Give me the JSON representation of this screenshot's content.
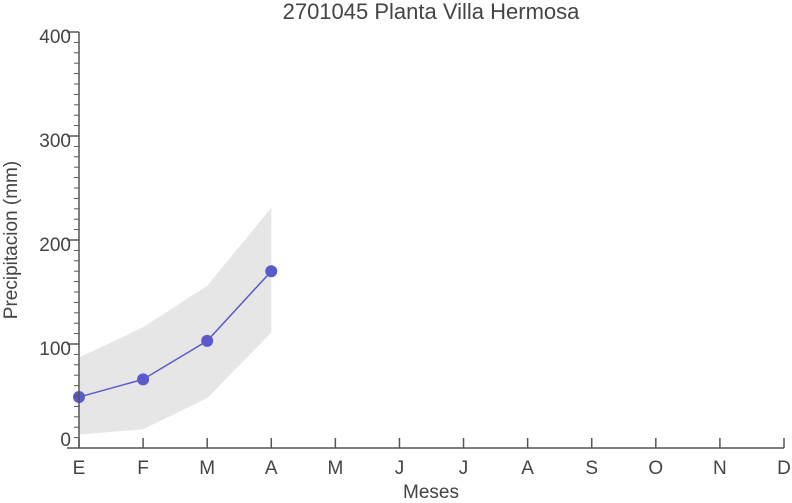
{
  "chart_data": {
    "type": "line",
    "title": "2701045 Planta Villa Hermosa",
    "xlabel": "Meses",
    "ylabel": "Precipitacion (mm)",
    "categories": [
      "E",
      "F",
      "M",
      "A",
      "M",
      "J",
      "J",
      "A",
      "S",
      "O",
      "N",
      "D"
    ],
    "series": [
      {
        "color": "#5a5acd",
        "band_color": "#e6e6e6",
        "values": [
          49,
          66,
          103,
          170,
          null,
          null,
          null,
          null,
          null,
          null,
          null,
          null
        ],
        "lower": [
          13,
          18,
          48,
          111,
          null,
          null,
          null,
          null,
          null,
          null,
          null,
          null
        ],
        "upper": [
          87,
          116,
          156,
          231,
          null,
          null,
          null,
          null,
          null,
          null,
          null,
          null
        ]
      }
    ],
    "ylim": [
      0,
      400
    ],
    "yticks": [
      0,
      100,
      200,
      300,
      400
    ],
    "yminorticks": [
      10,
      20,
      30,
      40,
      50,
      60,
      70,
      80,
      90,
      110,
      120,
      130,
      140,
      150,
      160,
      170,
      180,
      190,
      210,
      220,
      230,
      240,
      250,
      260,
      270,
      280,
      290,
      310,
      320,
      330,
      340,
      350,
      360,
      370,
      380,
      390
    ]
  }
}
